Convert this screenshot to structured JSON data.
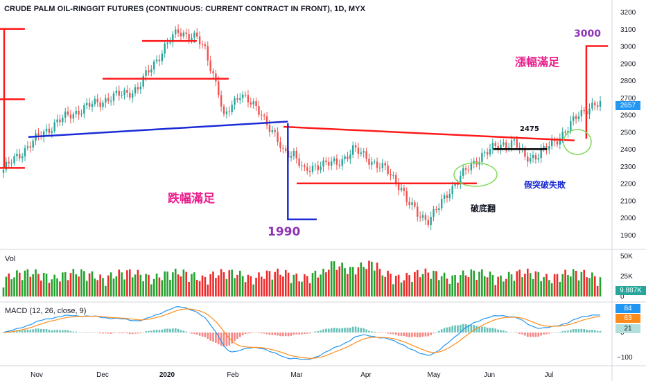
{
  "title": "CRUDE PALM OIL-RINGGIT FUTURES (CONTINUOUS: CURRENT CONTRACT IN FRONT), 1D, MYX",
  "colors": {
    "up": "#26a69a",
    "down": "#ef5350",
    "vol_up": "#22a32e",
    "vol_down": "#ee2a2a",
    "red_line": "#ff1a1a",
    "blue_line": "#1a2bd6",
    "macd_line": "#2196f3",
    "signal_line": "#ff8c1a",
    "hist_pos": "#26a69a",
    "hist_neg": "#ef5350",
    "price_tag": "#2196f3",
    "annot_magenta": "#e91e8c",
    "annot_purple": "#8e35b5"
  },
  "annotations": {
    "fall_target": "跌幅滿足",
    "rise_target": "漲幅滿足",
    "bottom_reversal": "破底翻",
    "false_breakout": "假突破失敗",
    "level_1990": "1990",
    "level_3000": "3000",
    "level_2475": "2475"
  },
  "panes": {
    "volume_label": "Vol",
    "macd_label": "MACD (12, 26, close, 9)"
  },
  "tags": {
    "price_last": "2657",
    "vol_last": "9.887K",
    "macd_a": "84",
    "macd_b": "63",
    "macd_c": "21"
  },
  "chart_data": {
    "type": "candlestick",
    "title": "CRUDE PALM OIL-RINGGIT FUTURES (CONTINUOUS: CURRENT CONTRACT IN FRONT), 1D, MYX",
    "price_axis": {
      "ticks": [
        1900,
        2000,
        2100,
        2200,
        2300,
        2400,
        2500,
        2600,
        2700,
        2800,
        2900,
        3000,
        3100,
        3200
      ],
      "range": [
        1850,
        3250
      ]
    },
    "volume_axis": {
      "ticks": [
        "0",
        "25K",
        "50K"
      ]
    },
    "macd_axis": {
      "ticks": [
        "−100",
        "0"
      ]
    },
    "x_labels": [
      "Nov",
      "Dec",
      "2020",
      "Feb",
      "Mar",
      "Apr",
      "May",
      "Jun",
      "Jul"
    ],
    "last_price": 2657,
    "last_volume": "9.887K",
    "macd_values": {
      "macd": 84,
      "signal": 63,
      "histogram": 21
    },
    "price_anchors": [
      [
        0,
        2280
      ],
      [
        10,
        2430
      ],
      [
        20,
        2560
      ],
      [
        30,
        2640
      ],
      [
        40,
        2700
      ],
      [
        50,
        2750
      ],
      [
        55,
        2880
      ],
      [
        60,
        2990
      ],
      [
        65,
        3090
      ],
      [
        68,
        3070
      ],
      [
        72,
        3040
      ],
      [
        75,
        2980
      ],
      [
        78,
        2840
      ],
      [
        80,
        2730
      ],
      [
        82,
        2570
      ],
      [
        85,
        2660
      ],
      [
        88,
        2730
      ],
      [
        92,
        2660
      ],
      [
        96,
        2610
      ],
      [
        100,
        2500
      ],
      [
        104,
        2380
      ],
      [
        108,
        2380
      ],
      [
        112,
        2260
      ],
      [
        118,
        2320
      ],
      [
        124,
        2310
      ],
      [
        130,
        2400
      ],
      [
        136,
        2340
      ],
      [
        142,
        2280
      ],
      [
        148,
        2180
      ],
      [
        150,
        2100
      ],
      [
        154,
        2020
      ],
      [
        158,
        1990
      ],
      [
        162,
        2060
      ],
      [
        166,
        2160
      ],
      [
        170,
        2240
      ],
      [
        174,
        2300
      ],
      [
        178,
        2370
      ],
      [
        182,
        2400
      ],
      [
        186,
        2430
      ],
      [
        190,
        2440
      ],
      [
        194,
        2350
      ],
      [
        198,
        2360
      ],
      [
        202,
        2400
      ],
      [
        206,
        2460
      ],
      [
        210,
        2520
      ],
      [
        214,
        2600
      ],
      [
        218,
        2650
      ],
      [
        222,
        2657
      ]
    ],
    "annotation_lines": [
      {
        "name": "fall-target-1",
        "color": "red",
        "points": [
          [
            "2019-10-01",
            3100
          ],
          [
            "2019-10-22",
            3100
          ]
        ]
      },
      {
        "name": "fall-target-2",
        "color": "red",
        "points": [
          [
            "2019-10-01",
            2690
          ],
          [
            "2019-10-22",
            2690
          ]
        ]
      },
      {
        "name": "fall-target-3",
        "color": "red",
        "points": [
          [
            "2019-10-01",
            2290
          ],
          [
            "2019-10-22",
            2290
          ]
        ]
      },
      {
        "name": "top-resistance",
        "color": "red",
        "points": [
          [
            "2019-12-20",
            3030
          ],
          [
            "2020-01-15",
            3030
          ]
        ]
      },
      {
        "name": "mid-resistance",
        "color": "red",
        "points": [
          [
            "2019-12-01",
            2810
          ],
          [
            "2020-01-30",
            2810
          ]
        ]
      },
      {
        "name": "neckline-blue",
        "color": "blue",
        "points": [
          [
            "2019-10-25",
            2470
          ],
          [
            "2020-02-26",
            2560
          ]
        ]
      },
      {
        "name": "neckline-red",
        "color": "red",
        "points": [
          [
            "2020-02-24",
            2530
          ],
          [
            "2020-07-14",
            2450
          ]
        ]
      },
      {
        "name": "support-2200",
        "color": "red",
        "points": [
          [
            "2020-03-01",
            2200
          ],
          [
            "2020-05-25",
            2200
          ]
        ]
      },
      {
        "name": "box-2400",
        "color": "black",
        "points": [
          [
            "2020-06-03",
            2400
          ],
          [
            "2020-06-30",
            2400
          ]
        ]
      },
      {
        "name": "target-3000",
        "color": "red",
        "points": [
          [
            "2020-07-20",
            2460
          ],
          [
            "2020-07-20",
            3000
          ],
          [
            "2020-07-31",
            3000
          ]
        ]
      },
      {
        "name": "target-1990",
        "color": "blue",
        "points": [
          [
            "2020-02-26",
            2550
          ],
          [
            "2020-02-26",
            1990
          ],
          [
            "2020-03-10",
            1990
          ]
        ]
      }
    ]
  }
}
